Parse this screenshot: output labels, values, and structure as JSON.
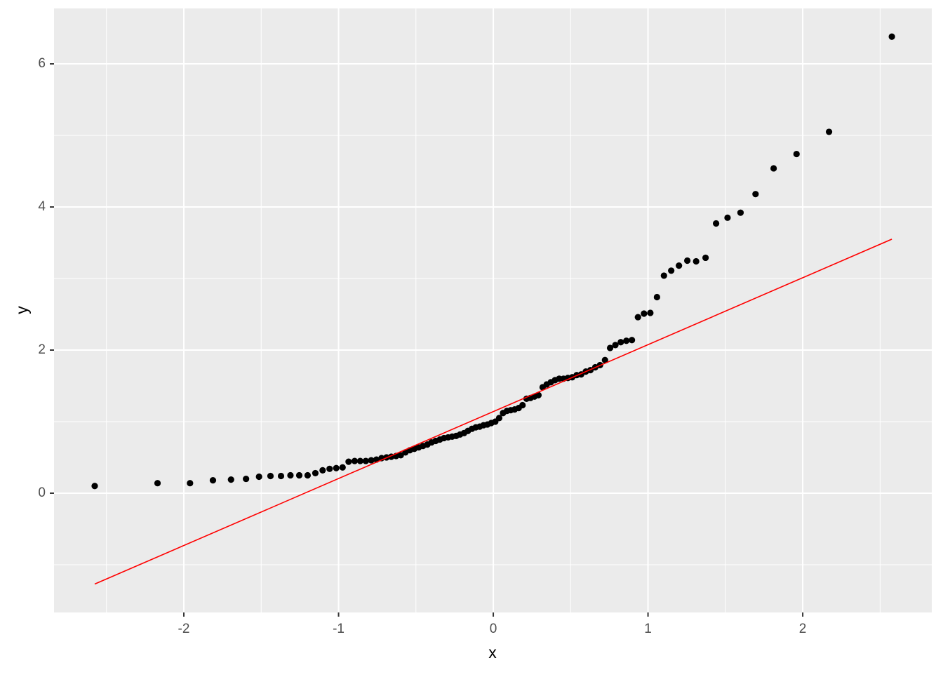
{
  "chart_data": {
    "type": "scatter",
    "x_label": "x",
    "y_label": "y",
    "xlim": [
      -2.839,
      2.834
    ],
    "ylim": [
      -1.667,
      6.775
    ],
    "xticks": [
      -2,
      -1,
      0,
      1,
      2
    ],
    "yticks": [
      0,
      2,
      4,
      6
    ],
    "grid": true,
    "points": {
      "color": "#000000",
      "x": [
        -2.576,
        -2.17,
        -1.96,
        -1.812,
        -1.695,
        -1.598,
        -1.514,
        -1.44,
        -1.372,
        -1.311,
        -1.254,
        -1.2,
        -1.15,
        -1.103,
        -1.058,
        -1.015,
        -0.974,
        -0.935,
        -0.896,
        -0.86,
        -0.824,
        -0.789,
        -0.755,
        -0.722,
        -0.69,
        -0.659,
        -0.628,
        -0.598,
        -0.568,
        -0.539,
        -0.51,
        -0.482,
        -0.454,
        -0.426,
        -0.399,
        -0.372,
        -0.345,
        -0.319,
        -0.292,
        -0.266,
        -0.24,
        -0.215,
        -0.189,
        -0.164,
        -0.138,
        -0.113,
        -0.088,
        -0.063,
        -0.038,
        -0.013,
        0.013,
        0.038,
        0.063,
        0.088,
        0.113,
        0.138,
        0.164,
        0.189,
        0.215,
        0.24,
        0.266,
        0.292,
        0.319,
        0.345,
        0.372,
        0.399,
        0.426,
        0.454,
        0.482,
        0.51,
        0.539,
        0.568,
        0.598,
        0.628,
        0.659,
        0.69,
        0.722,
        0.755,
        0.789,
        0.824,
        0.86,
        0.896,
        0.935,
        0.974,
        1.015,
        1.058,
        1.103,
        1.15,
        1.2,
        1.254,
        1.311,
        1.372,
        1.44,
        1.514,
        1.598,
        1.695,
        1.812,
        1.96,
        2.17,
        2.576
      ],
      "values": [
        0.1,
        0.14,
        0.14,
        0.18,
        0.19,
        0.2,
        0.23,
        0.24,
        0.24,
        0.25,
        0.25,
        0.25,
        0.28,
        0.32,
        0.34,
        0.35,
        0.36,
        0.44,
        0.45,
        0.45,
        0.45,
        0.46,
        0.47,
        0.49,
        0.5,
        0.51,
        0.52,
        0.53,
        0.57,
        0.6,
        0.62,
        0.64,
        0.66,
        0.68,
        0.71,
        0.73,
        0.75,
        0.77,
        0.78,
        0.79,
        0.8,
        0.82,
        0.84,
        0.87,
        0.9,
        0.92,
        0.93,
        0.95,
        0.96,
        0.98,
        1.0,
        1.05,
        1.12,
        1.15,
        1.16,
        1.17,
        1.19,
        1.23,
        1.32,
        1.33,
        1.35,
        1.37,
        1.48,
        1.52,
        1.55,
        1.58,
        1.6,
        1.6,
        1.61,
        1.62,
        1.65,
        1.66,
        1.7,
        1.72,
        1.76,
        1.79,
        1.86,
        2.03,
        2.07,
        2.11,
        2.13,
        2.14,
        2.46,
        2.51,
        2.52,
        2.74,
        3.04,
        3.11,
        3.18,
        3.25,
        3.24,
        3.29,
        3.77,
        3.85,
        3.92,
        4.18,
        4.54,
        4.74,
        5.05,
        6.38
      ]
    },
    "reference_line": {
      "color": "#ff0000",
      "x": [
        -2.576,
        2.576
      ],
      "values": [
        -1.27,
        3.55
      ]
    }
  }
}
